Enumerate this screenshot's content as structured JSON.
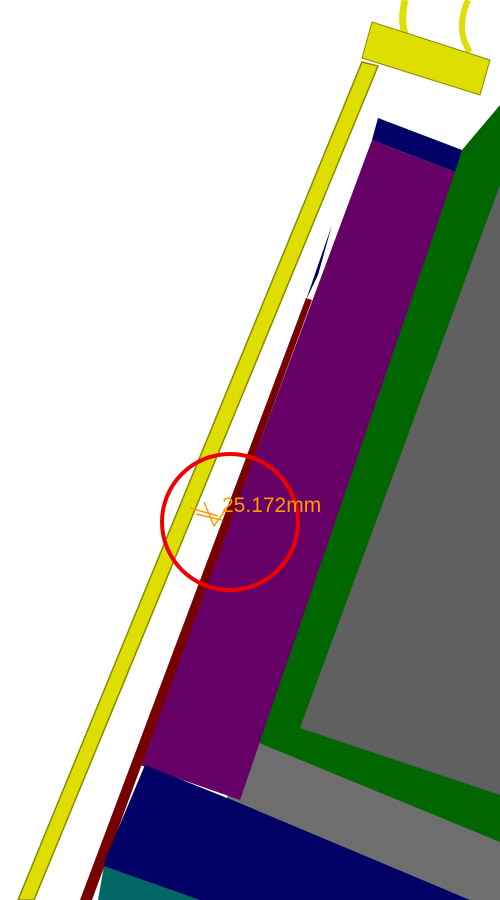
{
  "annotation": {
    "measurement": "25.172mm"
  }
}
